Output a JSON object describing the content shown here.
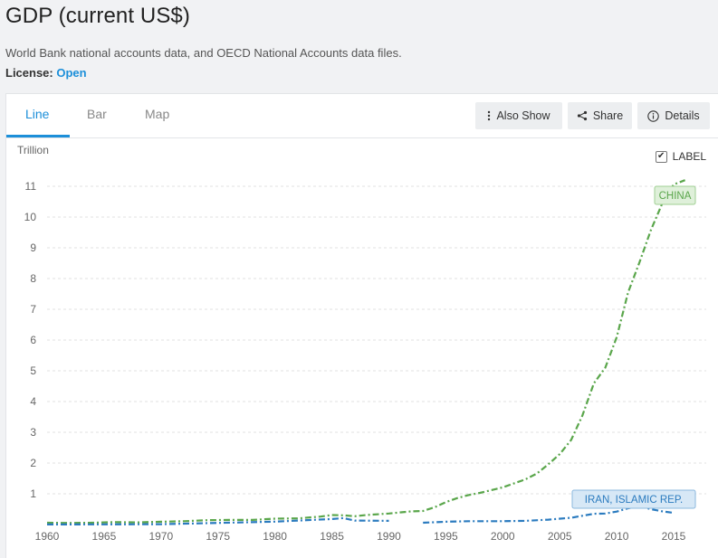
{
  "header": {
    "title": "GDP (current US$)",
    "source": "World Bank national accounts data, and OECD National Accounts data files.",
    "license_label": "License:",
    "license_value": "Open"
  },
  "tabs": [
    {
      "label": "Line",
      "active": true
    },
    {
      "label": "Bar",
      "active": false
    },
    {
      "label": "Map",
      "active": false
    }
  ],
  "toolbar": {
    "also_show_label": "Also Show",
    "share_label": "Share",
    "details_label": "Details",
    "also_show_icon": "vertical-dots-icon",
    "share_icon": "share-icon",
    "details_icon": "info-icon"
  },
  "label_toggle": {
    "label": "LABEL",
    "checked": true
  },
  "colors": {
    "accent": "#1c8fd9",
    "china": "#5aa64b",
    "iran": "#2b7bbf"
  },
  "chart_data": {
    "type": "line",
    "ylabel": "Trillion",
    "ylim": [
      0,
      11.5
    ],
    "yticks": [
      "1",
      "2",
      "3",
      "4",
      "5",
      "6",
      "7",
      "8",
      "9",
      "10",
      "11"
    ],
    "xlim": [
      1960,
      2016
    ],
    "xticks": [
      "1960",
      "1965",
      "1970",
      "1975",
      "1980",
      "1985",
      "1990",
      "1995",
      "2000",
      "2005",
      "2010",
      "2015"
    ],
    "grid": true,
    "series": [
      {
        "name": "CHINA",
        "color": "#5aa64b",
        "x": [
          1960,
          1962,
          1964,
          1966,
          1968,
          1970,
          1972,
          1974,
          1976,
          1978,
          1980,
          1982,
          1984,
          1985,
          1986,
          1987,
          1988,
          1990,
          1992,
          1993,
          1994,
          1995,
          1996,
          1997,
          1998,
          2000,
          2002,
          2003,
          2004,
          2005,
          2006,
          2007,
          2008,
          2009,
          2010,
          2011,
          2012,
          2013,
          2014,
          2015,
          2016
        ],
        "values": [
          0.06,
          0.05,
          0.06,
          0.08,
          0.07,
          0.09,
          0.11,
          0.14,
          0.15,
          0.15,
          0.19,
          0.2,
          0.26,
          0.31,
          0.3,
          0.27,
          0.31,
          0.36,
          0.43,
          0.44,
          0.56,
          0.73,
          0.86,
          0.96,
          1.03,
          1.21,
          1.47,
          1.66,
          1.96,
          2.29,
          2.75,
          3.55,
          4.59,
          5.1,
          6.09,
          7.55,
          8.53,
          9.57,
          10.44,
          11.06,
          11.2
        ]
      },
      {
        "name": "IRAN, ISLAMIC REP.",
        "color": "#2b7bbf",
        "x": [
          1960,
          1965,
          1970,
          1975,
          1980,
          1985,
          1986,
          1987,
          1990
        ],
        "values": [
          0.004,
          0.006,
          0.011,
          0.052,
          0.095,
          0.18,
          0.21,
          0.13,
          0.12
        ],
        "segment2_x": [
          1993,
          1995,
          1997,
          2000,
          2002,
          2004,
          2006,
          2008,
          2009,
          2010,
          2011,
          2012,
          2013,
          2014,
          2015
        ],
        "segment2_values": [
          0.06,
          0.09,
          0.11,
          0.11,
          0.12,
          0.16,
          0.22,
          0.35,
          0.36,
          0.42,
          0.53,
          0.6,
          0.5,
          0.43,
          0.38
        ]
      }
    ]
  }
}
